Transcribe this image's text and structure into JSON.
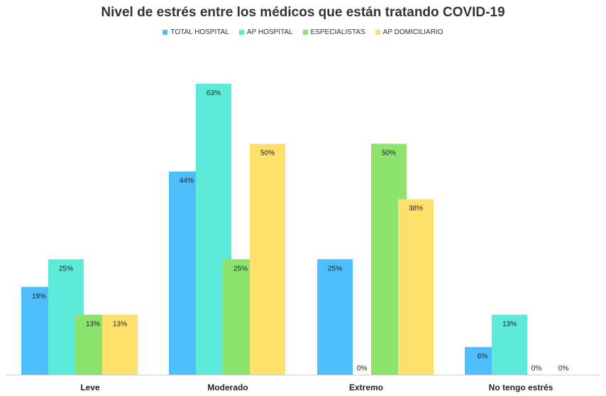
{
  "chart_data": {
    "type": "bar",
    "title": "Nivel de estrés entre los médicos que están tratando COVID-19",
    "categories": [
      "Leve",
      "Moderado",
      "Extremo",
      "No tengo estrés"
    ],
    "series": [
      {
        "name": "TOTAL HOSPITAL",
        "color": "#4DBDFB",
        "values": [
          19,
          44,
          25,
          6
        ],
        "labels": [
          "19%",
          "44%",
          "25%",
          "6%"
        ]
      },
      {
        "name": "AP HOSPITAL",
        "color": "#5EEADA",
        "values": [
          25,
          63,
          0,
          13
        ],
        "labels": [
          "25%",
          "63%",
          "0%",
          "13%"
        ]
      },
      {
        "name": "ESPECIALISTAS",
        "color": "#8DE36E",
        "values": [
          13,
          25,
          50,
          0
        ],
        "labels": [
          "13%",
          "25%",
          "50%",
          "0%"
        ]
      },
      {
        "name": "AP DOMICILIARIO",
        "color": "#FEE06C",
        "values": [
          13,
          50,
          38,
          0
        ],
        "labels": [
          "13%",
          "50%",
          "38%",
          "0%"
        ]
      }
    ],
    "xlabel": "",
    "ylabel": "",
    "ylim": [
      0,
      63
    ],
    "grid": false,
    "legend": "top-center"
  }
}
